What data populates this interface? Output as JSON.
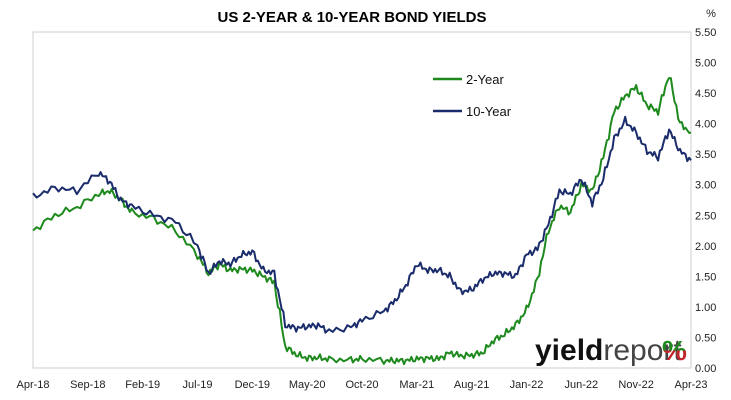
{
  "chart_data": {
    "type": "line",
    "title": "US 2-YEAR & 10-YEAR BOND YIELDS",
    "y_unit": "%",
    "ylim": [
      0,
      5.5
    ],
    "y_ticks": [
      "0.00",
      "0.50",
      "1.00",
      "1.50",
      "2.00",
      "2.50",
      "3.00",
      "3.50",
      "4.00",
      "4.50",
      "5.00",
      "5.50"
    ],
    "x_ticks": [
      "Apr-18",
      "Sep-18",
      "Feb-19",
      "Jul-19",
      "Dec-19",
      "May-20",
      "Oct-20",
      "Mar-21",
      "Aug-21",
      "Jan-22",
      "Jun-22",
      "Nov-22",
      "Apr-23"
    ],
    "x": [
      "Apr-18",
      "Jun-18",
      "Aug-18",
      "Oct-18",
      "Nov-18",
      "Dec-18",
      "Jan-19",
      "Mar-19",
      "May-19",
      "Jul-19",
      "Aug-19",
      "Sep-19",
      "Oct-19",
      "Nov-19",
      "Dec-19",
      "Jan-20",
      "Feb-20",
      "Mar-20",
      "Apr-20",
      "May-20",
      "Jun-20",
      "Jul-20",
      "Sep-20",
      "Oct-20",
      "Dec-20",
      "Jan-21",
      "Feb-21",
      "Mar-21",
      "Apr-21",
      "May-21",
      "Jun-21",
      "Jul-21",
      "Aug-21",
      "Sep-21",
      "Oct-21",
      "Nov-21",
      "Dec-21",
      "Jan-22",
      "Feb-22",
      "Mar-22",
      "Apr-22",
      "May-22",
      "Jun-22",
      "Jul-22",
      "Aug-22",
      "Sep-22",
      "Oct-22",
      "Nov-22",
      "Dec-22",
      "Jan-23",
      "Feb-23",
      "Mar-23",
      "Apr-23"
    ],
    "series": [
      {
        "name": "2-Year",
        "color": "#1e8a1e",
        "values": [
          2.25,
          2.5,
          2.63,
          2.85,
          2.9,
          2.75,
          2.55,
          2.45,
          2.25,
          1.85,
          1.55,
          1.7,
          1.6,
          1.62,
          1.6,
          1.5,
          1.4,
          0.35,
          0.22,
          0.16,
          0.17,
          0.14,
          0.13,
          0.15,
          0.12,
          0.12,
          0.12,
          0.15,
          0.16,
          0.15,
          0.25,
          0.2,
          0.21,
          0.25,
          0.45,
          0.55,
          0.7,
          0.95,
          1.45,
          2.25,
          2.65,
          2.55,
          3.0,
          2.9,
          3.45,
          4.2,
          4.45,
          4.6,
          4.3,
          4.2,
          4.8,
          4.0,
          3.85
        ]
      },
      {
        "name": "10-Year",
        "color": "#1a2c6b",
        "values": [
          2.8,
          2.95,
          2.9,
          3.2,
          3.05,
          2.75,
          2.65,
          2.5,
          2.4,
          2.0,
          1.55,
          1.75,
          1.7,
          1.85,
          1.9,
          1.6,
          1.55,
          0.7,
          0.65,
          0.68,
          0.7,
          0.6,
          0.67,
          0.78,
          0.93,
          1.1,
          1.35,
          1.7,
          1.6,
          1.6,
          1.5,
          1.25,
          1.28,
          1.45,
          1.55,
          1.55,
          1.5,
          1.85,
          1.95,
          2.35,
          2.9,
          2.85,
          3.1,
          2.7,
          3.1,
          3.75,
          4.05,
          3.85,
          3.55,
          3.45,
          3.9,
          3.55,
          3.4
        ]
      }
    ],
    "legend": {
      "position": "top-center",
      "entries": [
        "2-Year",
        "10-Year"
      ]
    },
    "grid": false
  },
  "brand": {
    "text_main": "yield",
    "text_second": "report",
    "symbol": "%",
    "color_main": "#111111",
    "color_second": "#444444",
    "color_symbol_top": "#1e8a1e",
    "color_symbol_bottom": "#c0262b"
  }
}
